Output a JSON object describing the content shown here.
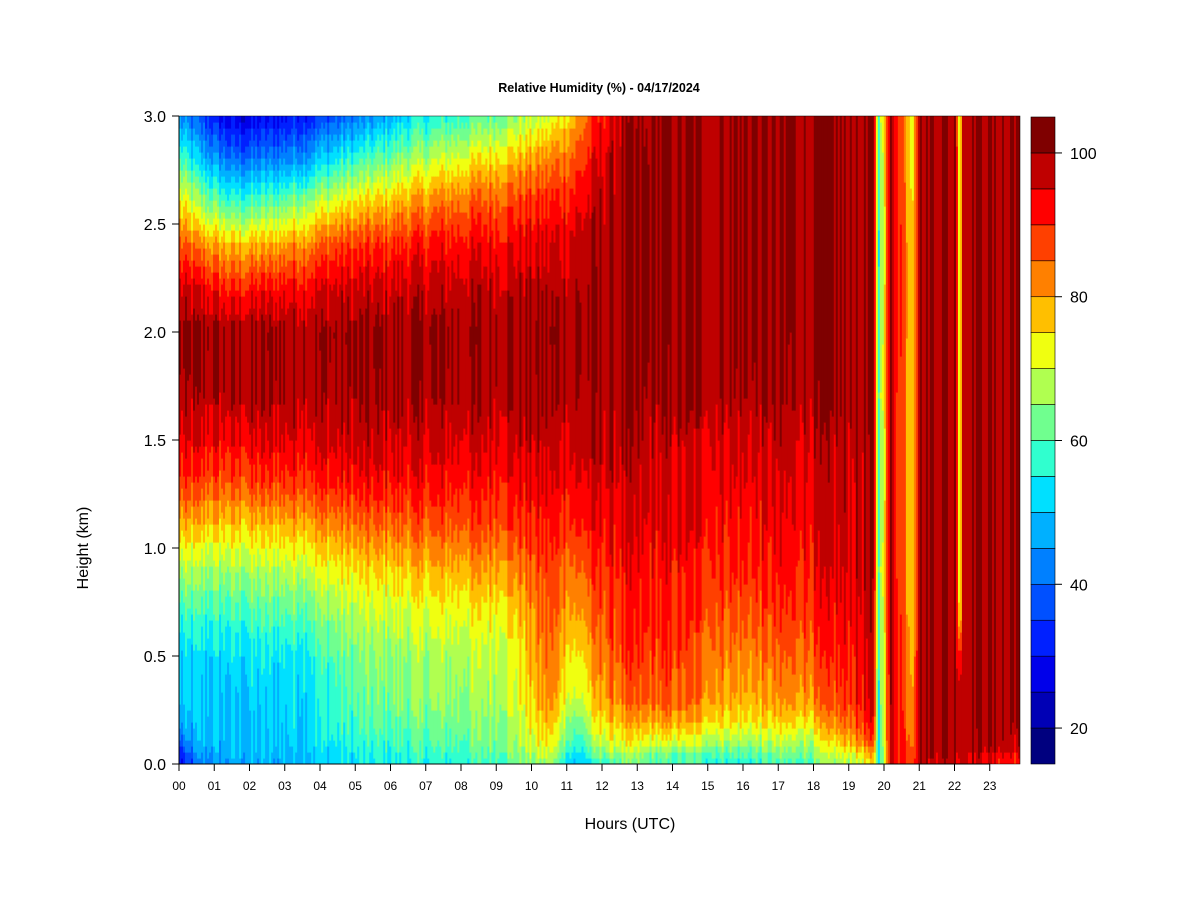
{
  "chart_data": {
    "type": "heatmap",
    "title": "Relative Humidity (%) - 04/17/2024",
    "xlabel": "Hours (UTC)",
    "ylabel": "Height (km)",
    "xlim": [
      0,
      24
    ],
    "ylim": [
      0.0,
      3.0
    ],
    "x_ticks": [
      "00",
      "01",
      "02",
      "03",
      "04",
      "05",
      "06",
      "07",
      "08",
      "09",
      "10",
      "11",
      "12",
      "13",
      "14",
      "15",
      "16",
      "17",
      "18",
      "19",
      "20",
      "21",
      "22",
      "23"
    ],
    "y_ticks": [
      "0.0",
      "0.5",
      "1.0",
      "1.5",
      "2.0",
      "2.5",
      "3.0"
    ],
    "colorbar": {
      "range": [
        15,
        100
      ],
      "step": 5,
      "tick_labels": [
        "20",
        "40",
        "60",
        "80",
        "100"
      ],
      "colors": [
        "#00007f",
        "#0000b5",
        "#0000ea",
        "#0020ff",
        "#0050ff",
        "#0080ff",
        "#00b0ff",
        "#00e0ff",
        "#30ffcf",
        "#70ff8f",
        "#b0ff50",
        "#f0ff10",
        "#ffbf00",
        "#ff8000",
        "#ff4000",
        "#ff0000",
        "#bf0000"
      ]
    },
    "rh_profiles": {
      "heights_km": [
        0.0,
        0.05,
        0.1,
        0.2,
        0.3,
        0.5,
        0.7,
        0.9,
        1.1,
        1.3,
        1.5,
        1.7,
        2.0,
        2.2,
        2.4,
        2.6,
        2.8,
        3.0
      ],
      "times_hr": [
        0,
        0.6,
        1.5,
        2.5,
        3.5,
        4.5,
        5.5,
        6.5,
        7.5,
        8.5,
        9.5,
        10.5,
        11.3,
        12.0,
        12.7,
        14,
        16,
        18,
        19.7,
        19.85,
        20.2,
        20.8,
        21.0,
        22.05,
        22.15,
        22.25,
        23.9
      ],
      "values": [
        [
          28,
          30,
          38,
          47,
          49,
          50,
          57,
          66,
          77,
          88,
          93,
          98,
          100,
          96,
          86,
          74,
          60,
          44
        ],
        [
          42,
          46,
          48,
          49,
          50,
          52,
          58,
          66,
          77,
          87,
          94,
          98,
          100,
          94,
          82,
          66,
          50,
          36
        ],
        [
          46,
          48,
          48,
          49,
          50,
          52,
          58,
          66,
          76,
          86,
          93,
          98,
          100,
          90,
          78,
          58,
          40,
          26
        ],
        [
          47,
          48,
          49,
          50,
          51,
          53,
          60,
          67,
          77,
          88,
          95,
          99,
          100,
          92,
          79,
          60,
          42,
          28
        ],
        [
          50,
          51,
          52,
          52,
          53,
          55,
          62,
          70,
          80,
          90,
          96,
          99,
          100,
          94,
          83,
          66,
          46,
          32
        ],
        [
          52,
          53,
          55,
          57,
          58,
          61,
          66,
          73,
          82,
          91,
          96,
          99,
          100,
          96,
          88,
          73,
          55,
          38
        ],
        [
          54,
          55,
          57,
          60,
          62,
          64,
          69,
          75,
          84,
          92,
          97,
          99,
          100,
          96,
          89,
          76,
          60,
          44
        ],
        [
          56,
          57,
          59,
          62,
          64,
          66,
          70,
          77,
          85,
          92,
          96,
          99,
          100,
          97,
          91,
          80,
          66,
          52
        ],
        [
          56,
          58,
          60,
          63,
          65,
          67,
          72,
          78,
          86,
          92,
          96,
          99,
          100,
          97,
          92,
          83,
          70,
          56
        ],
        [
          58,
          60,
          62,
          64,
          66,
          68,
          73,
          80,
          87,
          92,
          96,
          99,
          100,
          98,
          93,
          86,
          74,
          60
        ],
        [
          62,
          64,
          66,
          68,
          70,
          72,
          76,
          82,
          89,
          93,
          97,
          99,
          100,
          98,
          94,
          88,
          78,
          65
        ],
        [
          66,
          70,
          74,
          78,
          82,
          84,
          86,
          88,
          91,
          94,
          97,
          99,
          100,
          98,
          95,
          90,
          82,
          70
        ],
        [
          48,
          52,
          56,
          62,
          68,
          73,
          79,
          84,
          90,
          94,
          97,
          99,
          100,
          99,
          97,
          93,
          87,
          80
        ],
        [
          58,
          64,
          70,
          76,
          80,
          84,
          87,
          90,
          93,
          96,
          98,
          99,
          100,
          100,
          99,
          98,
          96,
          92
        ],
        [
          62,
          66,
          72,
          78,
          84,
          88,
          90,
          92,
          94,
          96,
          98,
          99,
          100,
          100,
          100,
          100,
          99,
          98
        ],
        [
          58,
          62,
          70,
          80,
          86,
          88,
          90,
          92,
          94,
          95,
          97,
          99,
          100,
          100,
          100,
          100,
          100,
          100
        ],
        [
          56,
          60,
          66,
          74,
          78,
          82,
          86,
          90,
          92,
          94,
          96,
          99,
          100,
          100,
          100,
          100,
          100,
          100
        ],
        [
          60,
          64,
          68,
          76,
          82,
          86,
          90,
          92,
          94,
          95,
          97,
          99,
          100,
          100,
          100,
          100,
          100,
          100
        ],
        [
          72,
          78,
          86,
          92,
          95,
          96,
          97,
          98,
          99,
          99,
          99,
          100,
          100,
          100,
          100,
          100,
          100,
          100
        ],
        [
          55,
          55,
          55,
          56,
          56,
          58,
          60,
          62,
          60,
          58,
          58,
          62,
          60,
          58,
          56,
          58,
          60,
          62
        ],
        [
          94,
          95,
          96,
          97,
          98,
          98,
          99,
          99,
          99,
          99,
          99,
          99,
          100,
          100,
          100,
          100,
          100,
          100
        ],
        [
          90,
          88,
          86,
          84,
          82,
          80,
          78,
          76,
          76,
          76,
          76,
          76,
          78,
          78,
          78,
          76,
          74,
          74
        ],
        [
          98,
          99,
          100,
          100,
          100,
          100,
          100,
          100,
          100,
          100,
          100,
          100,
          100,
          100,
          100,
          100,
          100,
          100
        ],
        [
          98,
          99,
          100,
          100,
          100,
          100,
          100,
          100,
          100,
          100,
          100,
          100,
          100,
          100,
          100,
          100,
          100,
          100
        ],
        [
          96,
          97,
          98,
          99,
          99,
          92,
          70,
          68,
          68,
          68,
          68,
          68,
          68,
          68,
          68,
          68,
          68,
          66
        ],
        [
          98,
          99,
          100,
          100,
          100,
          100,
          100,
          100,
          100,
          100,
          100,
          100,
          100,
          100,
          100,
          100,
          100,
          100
        ],
        [
          88,
          94,
          98,
          100,
          100,
          100,
          100,
          100,
          100,
          100,
          100,
          100,
          100,
          100,
          100,
          100,
          100,
          100
        ]
      ]
    }
  }
}
